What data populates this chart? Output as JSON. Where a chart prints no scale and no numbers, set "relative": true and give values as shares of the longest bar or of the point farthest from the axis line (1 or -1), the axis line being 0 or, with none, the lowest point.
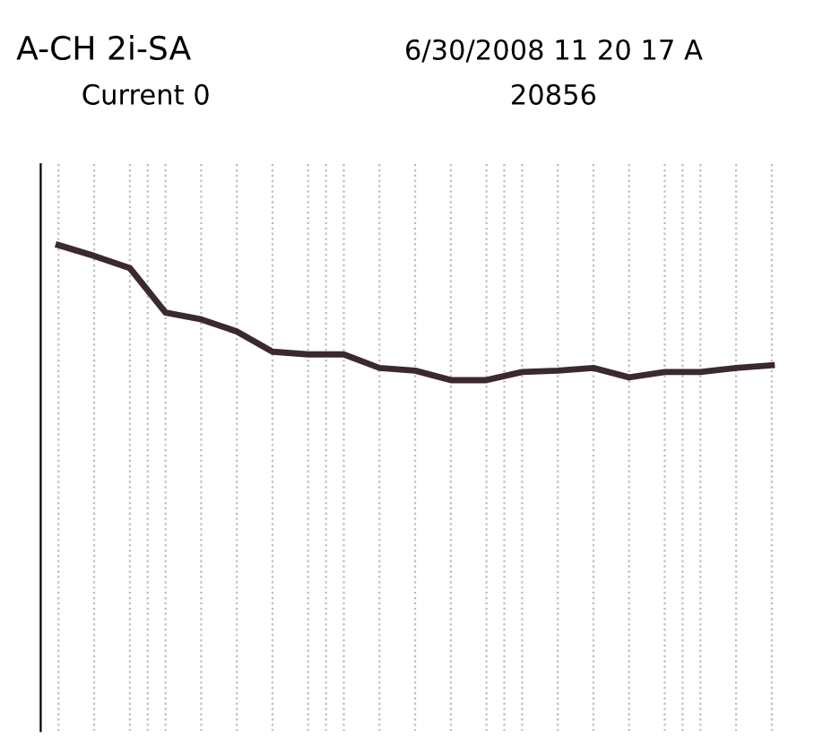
{
  "chart_data": {
    "type": "line",
    "title": "A-CH 2i-SA",
    "subtitle": "Current 0",
    "annotations": [
      "6/30/2008 11 20 17 A",
      "20856"
    ],
    "relative": true,
    "grid": true,
    "categories": [
      null,
      null,
      null,
      null,
      null,
      null,
      null,
      null,
      null,
      null,
      null,
      null,
      null,
      null,
      null,
      null,
      null,
      null,
      null,
      null,
      null
    ],
    "series": [
      {
        "color": "#3a2a30",
        "values": [
          1.0,
          0.92,
          0.83,
          0.5,
          0.45,
          0.36,
          0.21,
          0.19,
          0.19,
          0.09,
          0.07,
          0.0,
          0.0,
          0.06,
          0.07,
          0.09,
          0.02,
          0.06,
          0.06,
          0.09,
          0.11
        ]
      }
    ]
  }
}
